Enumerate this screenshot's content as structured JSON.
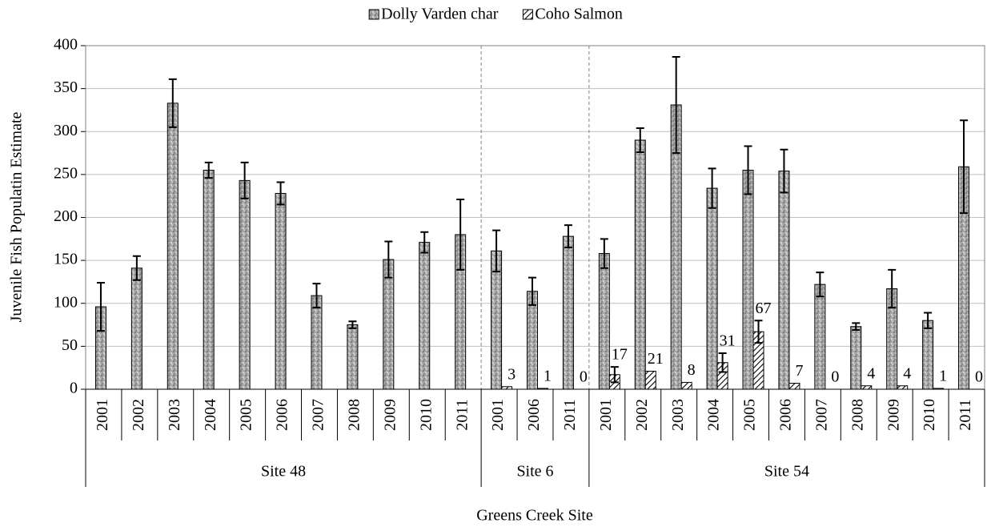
{
  "chart_data": {
    "type": "bar",
    "y_label": "Juvenile Fish Populatin Estimate",
    "x_label": "Greens Creek Site",
    "groups": [
      {
        "name": "Site 48",
        "categories": [
          "2001",
          "2002",
          "2003",
          "2004",
          "2005",
          "2006",
          "2007",
          "2008",
          "2009",
          "2010",
          "2011"
        ]
      },
      {
        "name": "Site 6",
        "categories": [
          "2001",
          "2006",
          "2011"
        ]
      },
      {
        "name": "Site 54",
        "categories": [
          "2001",
          "2002",
          "2003",
          "2004",
          "2005",
          "2006",
          "2007",
          "2008",
          "2009",
          "2010",
          "2011"
        ]
      }
    ],
    "series": [
      {
        "name": "Dolly Varden char",
        "color": "#a6a6a6",
        "pattern": "speckle",
        "values": [
          96,
          141,
          333,
          255,
          243,
          228,
          109,
          75,
          151,
          171,
          180,
          161,
          114,
          178,
          158,
          290,
          331,
          234,
          255,
          254,
          122,
          73,
          117,
          80,
          259
        ],
        "errors": [
          28,
          14,
          28,
          9,
          21,
          13,
          14,
          4,
          21,
          12,
          41,
          24,
          16,
          13,
          17,
          14,
          56,
          23,
          28,
          25,
          14,
          4,
          22,
          9,
          54
        ]
      },
      {
        "name": "Coho Salmon",
        "color": "#ffffff",
        "pattern": "hatch",
        "data_labels": true,
        "values": [
          null,
          null,
          null,
          null,
          null,
          null,
          null,
          null,
          null,
          null,
          null,
          3,
          1,
          0,
          17,
          21,
          8,
          31,
          67,
          7,
          0,
          4,
          4,
          1,
          0
        ],
        "errors": [
          null,
          null,
          null,
          null,
          null,
          null,
          null,
          null,
          null,
          null,
          null,
          null,
          null,
          null,
          9,
          null,
          null,
          11,
          13,
          null,
          null,
          null,
          null,
          null,
          null
        ]
      }
    ],
    "ylim": [
      0,
      400
    ],
    "yticks": [
      0,
      50,
      100,
      150,
      200,
      250,
      300,
      350,
      400
    ],
    "grid": true,
    "legend": "top"
  }
}
